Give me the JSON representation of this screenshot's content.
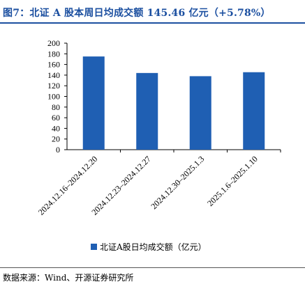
{
  "title": "图7：北证 A 股本周日均成交额 145.46 亿元（+5.78%）",
  "source": "数据来源：Wind、开源证券研究所",
  "colors": {
    "accent": "#1b4fa0",
    "bar": "#1f5fb3"
  },
  "chart_data": {
    "type": "bar",
    "categories": [
      "2024.12.16–2024.12.20",
      "2024.12.23–2024.12.27",
      "2024.12.30–2025.1.3",
      "2025.1.6–2025.1.10"
    ],
    "series": [
      {
        "name": "北证A股日均成交额（亿元）",
        "values": [
          175,
          144,
          138,
          145.46
        ]
      }
    ],
    "ylim": [
      0,
      200
    ],
    "yticks": [
      0,
      20,
      40,
      60,
      80,
      100,
      120,
      140,
      160,
      180,
      200
    ],
    "grid": false,
    "legend": "bottom-center"
  }
}
